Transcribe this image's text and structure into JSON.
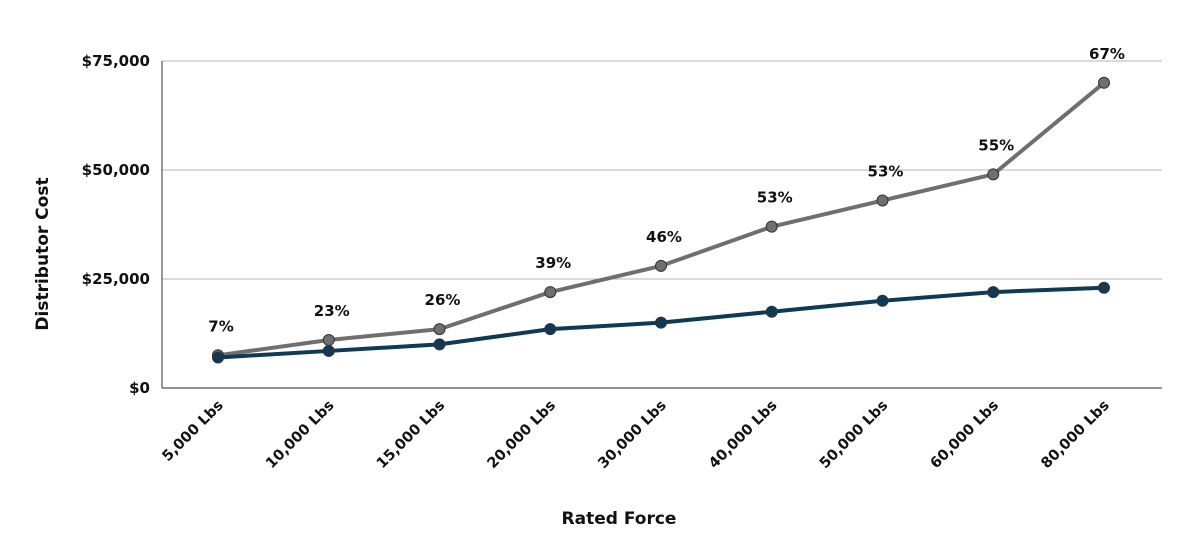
{
  "chart_data": {
    "type": "line",
    "title": "",
    "xlabel": "Rated Force",
    "ylabel": "Distributor Cost",
    "categories": [
      "5,000 Lbs",
      "10,000 Lbs",
      "15,000 Lbs",
      "20,000 Lbs",
      "30,000 Lbs",
      "40,000 Lbs",
      "50,000 Lbs",
      "60,000 Lbs",
      "80,000 Lbs"
    ],
    "ylim": [
      0,
      75000
    ],
    "yticks": [
      0,
      25000,
      50000,
      75000
    ],
    "ytick_labels": [
      "$0",
      "$25,000",
      "$50,000",
      "$75,000"
    ],
    "grid": true,
    "legend": "none",
    "series": [
      {
        "color": "#6f6f6f",
        "values": [
          7500,
          11000,
          13500,
          22000,
          28000,
          37000,
          43000,
          49000,
          70000
        ],
        "data_labels": [
          "7%",
          "23%",
          "26%",
          "39%",
          "46%",
          "53%",
          "53%",
          "55%",
          "67%"
        ]
      },
      {
        "color": "#0e3a57",
        "values": [
          7000,
          8500,
          10000,
          13500,
          15000,
          17500,
          20000,
          22000,
          23000
        ]
      }
    ]
  }
}
